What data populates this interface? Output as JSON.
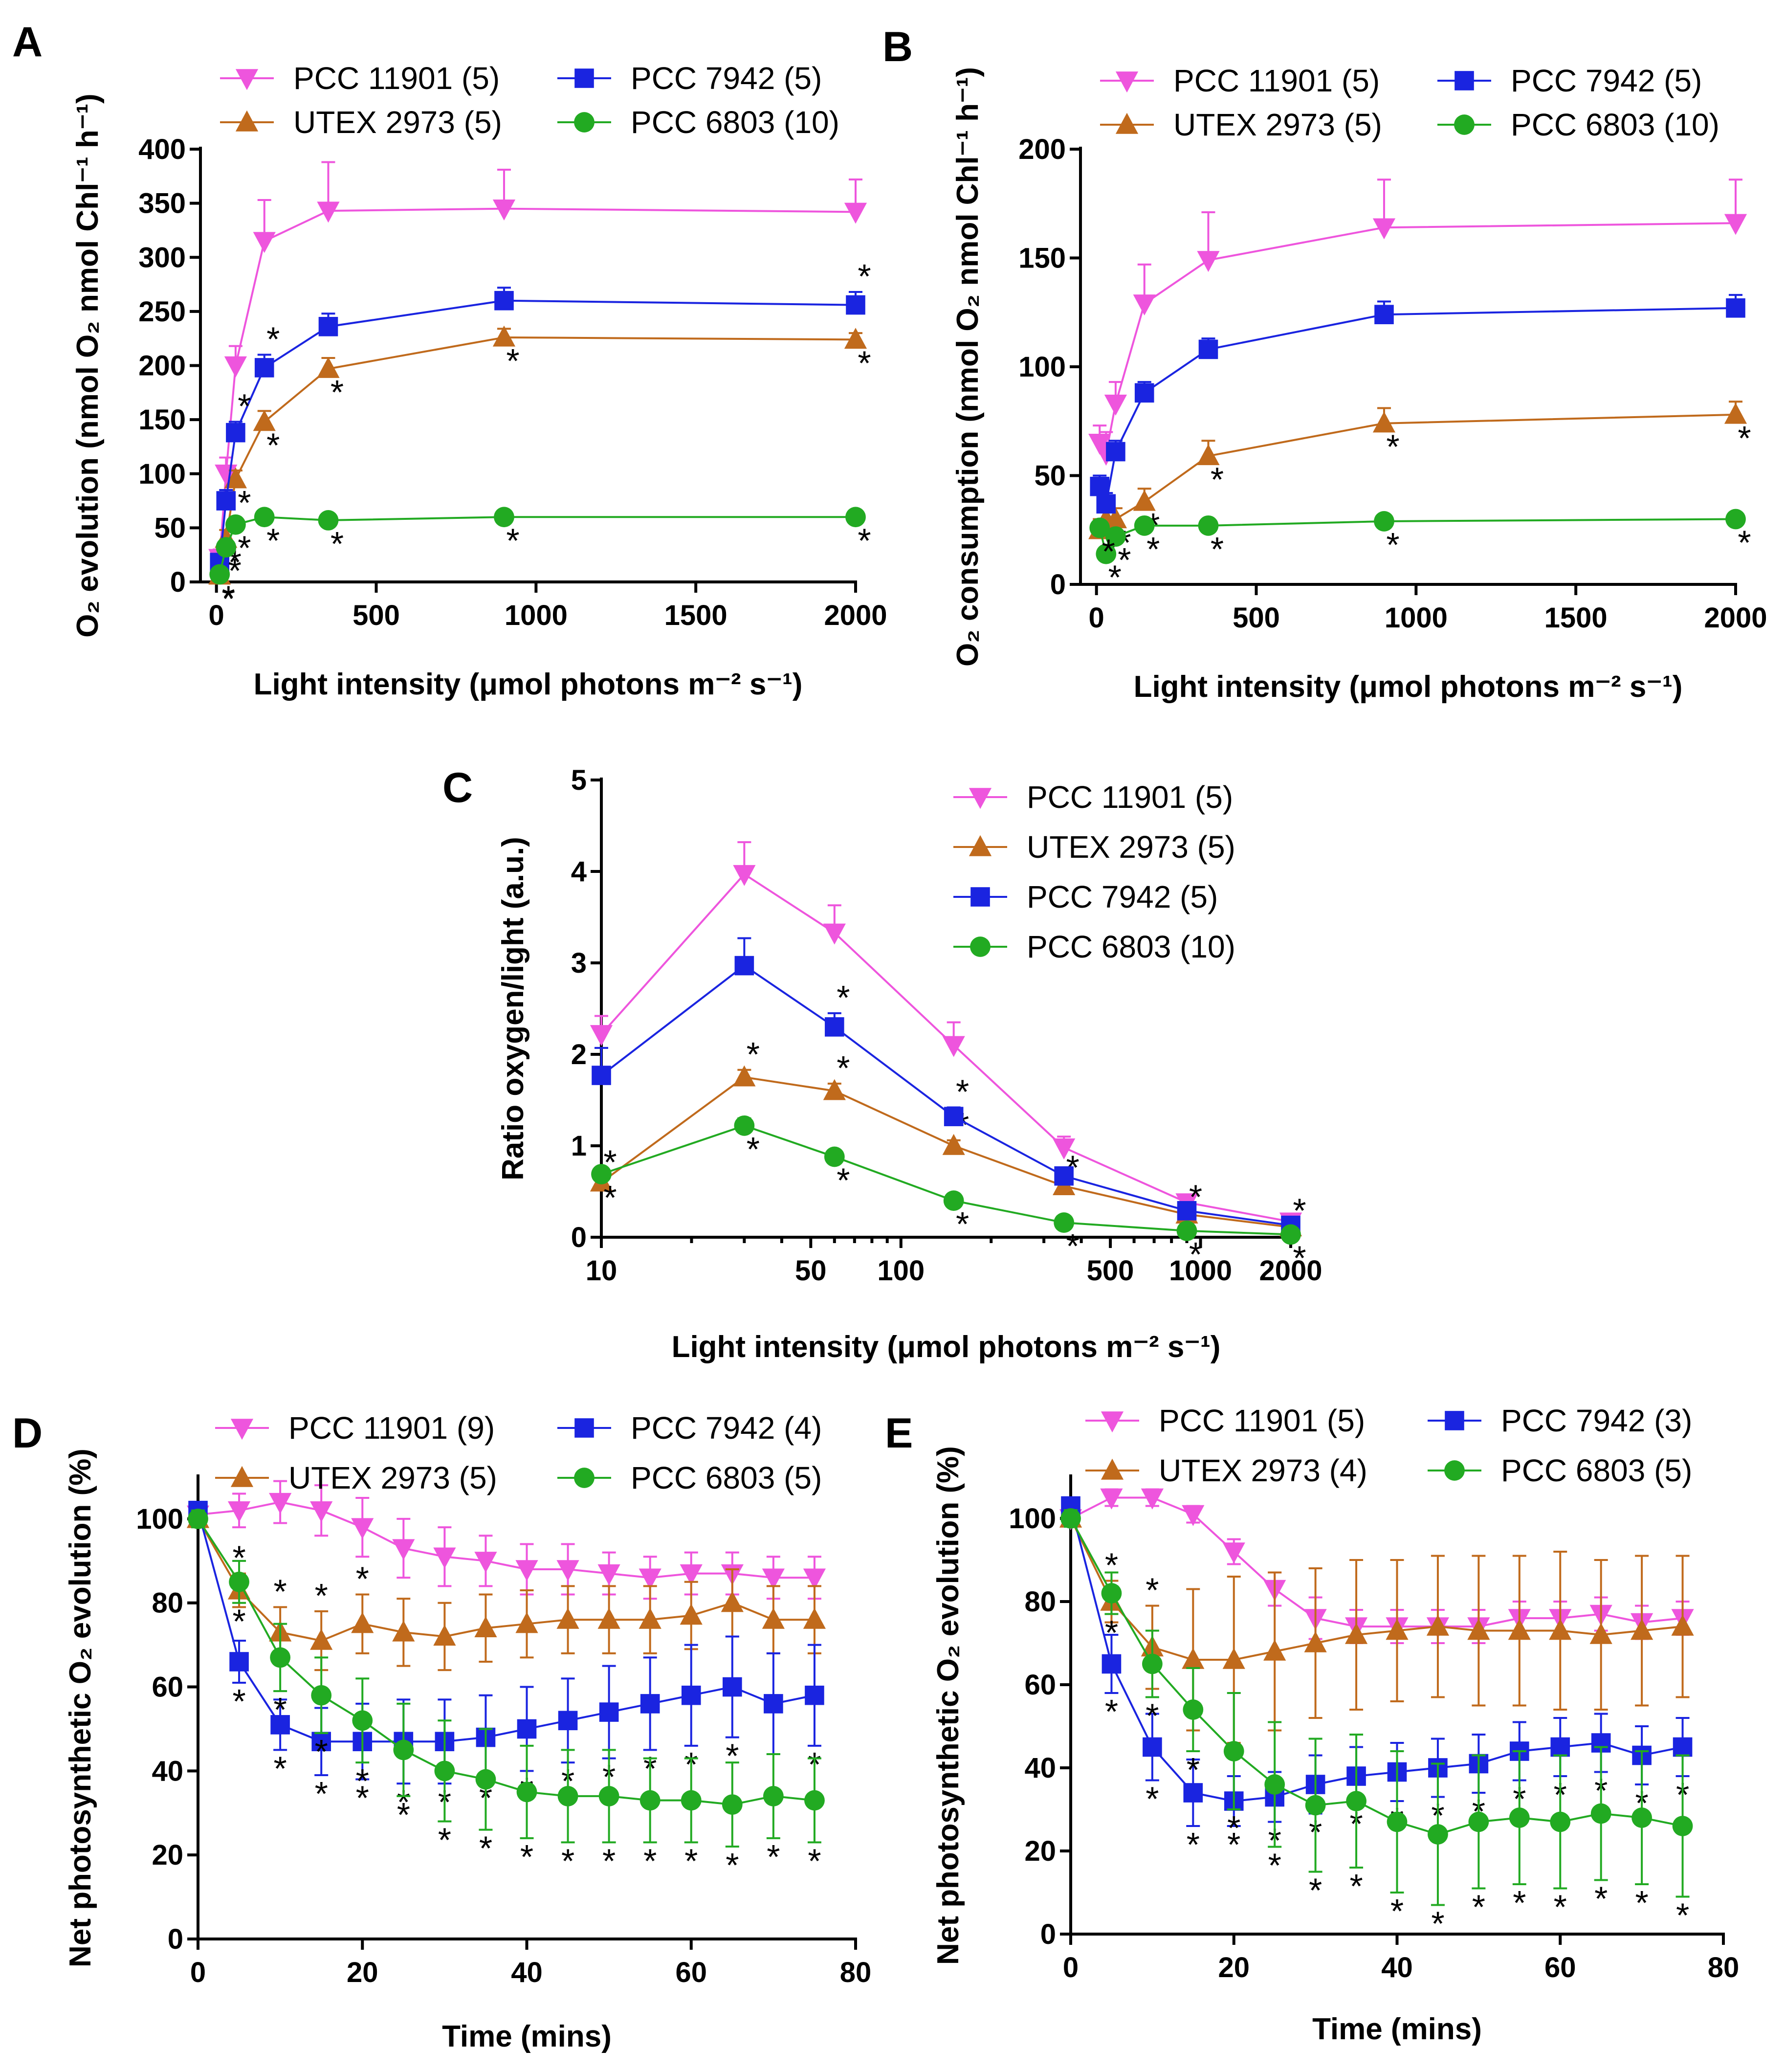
{
  "figure": {
    "colors": {
      "PCC 11901": "#ee55dd",
      "UTEX 2973": "#c06a1c",
      "PCC 7942": "#1a24e0",
      "PCC 6803": "#22aa22"
    },
    "markers": {
      "PCC 11901": "triangle-down",
      "UTEX 2973": "triangle-up",
      "PCC 7942": "square",
      "PCC 6803": "circle"
    }
  },
  "chart_data": [
    {
      "panel": "A",
      "type": "line",
      "xlabel": "Light intensity (μmol photons m⁻² s⁻¹)",
      "ylabel": "O₂ evolution (nmol O₂ nmol Chl⁻¹ h⁻¹)",
      "xlim": [
        -50,
        2000
      ],
      "ylim": [
        0,
        400
      ],
      "xticks": [
        0,
        500,
        1000,
        1500,
        2000
      ],
      "yticks": [
        0,
        50,
        100,
        150,
        200,
        250,
        300,
        350,
        400
      ],
      "x": [
        10,
        30,
        60,
        150,
        350,
        900,
        2000
      ],
      "legend": [
        "PCC 11901 (5)",
        "UTEX 2973 (5)",
        "PCC 7942 (5)",
        "PCC 6803 (10)"
      ],
      "series": [
        {
          "name": "PCC 11901",
          "values": [
            22,
            100,
            200,
            315,
            343,
            345,
            342
          ],
          "errors": [
            8,
            15,
            18,
            38,
            45,
            36,
            30
          ],
          "stars": []
        },
        {
          "name": "UTEX 2973",
          "values": [
            6,
            40,
            95,
            148,
            197,
            226,
            224
          ],
          "errors": [
            3,
            8,
            8,
            10,
            10,
            8,
            6
          ],
          "stars": [
            10,
            30,
            60,
            150,
            350,
            900,
            2000
          ]
        },
        {
          "name": "PCC 7942",
          "values": [
            18,
            75,
            138,
            198,
            236,
            260,
            256
          ],
          "errors": [
            5,
            10,
            10,
            12,
            12,
            12,
            12
          ],
          "stars": [
            60,
            150,
            2000
          ]
        },
        {
          "name": "PCC 6803",
          "values": [
            7,
            32,
            53,
            60,
            57,
            60,
            60
          ],
          "errors": [
            2,
            4,
            4,
            4,
            4,
            4,
            4
          ],
          "stars": [
            10,
            30,
            60,
            150,
            350,
            900,
            2000
          ]
        }
      ]
    },
    {
      "panel": "B",
      "type": "line",
      "xlabel": "Light intensity (μmol photons m⁻² s⁻¹)",
      "ylabel": "O₂ consumption (nmol O₂ nmol Chl⁻¹ h⁻¹)",
      "xlim": [
        -50,
        2000
      ],
      "ylim": [
        0,
        200
      ],
      "xticks": [
        0,
        500,
        1000,
        1500,
        2000
      ],
      "yticks": [
        0,
        50,
        100,
        150,
        200
      ],
      "x": [
        10,
        30,
        60,
        150,
        350,
        900,
        2000
      ],
      "legend": [
        "PCC 11901 (5)",
        "UTEX 2973 (5)",
        "PCC 7942 (5)",
        "PCC 6803 (10)"
      ],
      "series": [
        {
          "name": "PCC 11901",
          "values": [
            65,
            60,
            83,
            129,
            149,
            164,
            166
          ],
          "errors": [
            8,
            10,
            10,
            18,
            22,
            22,
            20
          ],
          "stars": []
        },
        {
          "name": "UTEX 2973",
          "values": [
            25,
            30,
            30,
            38,
            59,
            74,
            78
          ],
          "errors": [
            5,
            5,
            5,
            6,
            7,
            7,
            6
          ],
          "stars": [
            10,
            60,
            150,
            350,
            900,
            2000
          ]
        },
        {
          "name": "PCC 7942",
          "values": [
            45,
            37,
            61,
            88,
            108,
            124,
            127
          ],
          "errors": [
            5,
            5,
            5,
            5,
            5,
            6,
            6
          ],
          "stars": []
        },
        {
          "name": "PCC 6803",
          "values": [
            26,
            14,
            22,
            27,
            27,
            29,
            30
          ],
          "errors": [
            3,
            3,
            3,
            3,
            3,
            3,
            3
          ],
          "stars": [
            10,
            30,
            60,
            150,
            350,
            900,
            2000
          ]
        }
      ]
    },
    {
      "panel": "C",
      "type": "line",
      "xscale": "log",
      "xlabel": "Light intensity (μmol photons m⁻² s⁻¹)",
      "ylabel": "Ratio oxygen/light (a.u.)",
      "xlim": [
        10,
        2000
      ],
      "ylim": [
        0,
        5
      ],
      "xticks": [
        10,
        50,
        100,
        500,
        1000,
        2000
      ],
      "yticks": [
        0,
        1,
        2,
        3,
        4,
        5
      ],
      "x": [
        10,
        30,
        60,
        150,
        350,
        900,
        2000
      ],
      "legend": [
        "PCC 11901 (5)",
        "UTEX 2973 (5)",
        "PCC 7942 (5)",
        "PCC 6803 (10)"
      ],
      "series": [
        {
          "name": "PCC 11901",
          "values": [
            2.22,
            3.97,
            3.33,
            2.1,
            0.98,
            0.38,
            0.17
          ],
          "errors": [
            0.2,
            0.35,
            0.3,
            0.25,
            0.12,
            0.04,
            0.02
          ],
          "stars": []
        },
        {
          "name": "UTEX 2973",
          "values": [
            0.6,
            1.75,
            1.6,
            1.0,
            0.56,
            0.25,
            0.11
          ],
          "errors": [
            0.05,
            0.08,
            0.08,
            0.06,
            0.03,
            0.02,
            0.01
          ],
          "stars": [
            10,
            30,
            60,
            150,
            350,
            900,
            2000
          ]
        },
        {
          "name": "PCC 7942",
          "values": [
            1.77,
            2.97,
            2.3,
            1.32,
            0.67,
            0.29,
            0.13
          ],
          "errors": [
            0.3,
            0.3,
            0.15,
            0.1,
            0.05,
            0.03,
            0.02
          ],
          "stars": [
            60,
            150
          ]
        },
        {
          "name": "PCC 6803",
          "values": [
            0.69,
            1.22,
            0.88,
            0.4,
            0.16,
            0.07,
            0.03
          ],
          "errors": [
            0.05,
            0.08,
            0.06,
            0.04,
            0.02,
            0.01,
            0.01
          ],
          "stars": [
            10,
            30,
            60,
            150,
            350,
            900,
            2000
          ]
        }
      ]
    },
    {
      "panel": "D",
      "type": "line",
      "xlabel": "Time (mins)",
      "ylabel": "Net photosynthetic O₂ evolution (%)",
      "xlim": [
        0,
        80
      ],
      "ylim": [
        0,
        110
      ],
      "xticks": [
        0,
        20,
        40,
        60,
        80
      ],
      "yticks": [
        0,
        20,
        40,
        60,
        80,
        100
      ],
      "x": [
        0,
        5,
        10,
        15,
        20,
        25,
        30,
        35,
        40,
        45,
        50,
        55,
        60,
        65,
        70,
        75
      ],
      "legend": [
        "PCC 11901 (9)",
        "UTEX 2973 (5)",
        "PCC 7942 (4)",
        "PCC 6803 (5)"
      ],
      "series": [
        {
          "name": "PCC 11901",
          "values": [
            101,
            102,
            104,
            102,
            98,
            93,
            91,
            90,
            88,
            88,
            87,
            86,
            87,
            87,
            86,
            86
          ],
          "errors": [
            3,
            4,
            5,
            6,
            7,
            7,
            7,
            6,
            6,
            6,
            5,
            5,
            5,
            5,
            5,
            5
          ],
          "stars": []
        },
        {
          "name": "UTEX 2973",
          "values": [
            100,
            83,
            73,
            71,
            75,
            73,
            72,
            74,
            75,
            76,
            76,
            76,
            77,
            80,
            76,
            76
          ],
          "errors": [
            2,
            4,
            6,
            7,
            7,
            8,
            8,
            8,
            8,
            8,
            8,
            8,
            8,
            8,
            8,
            8
          ],
          "stars": [
            5,
            10,
            15,
            20
          ]
        },
        {
          "name": "PCC 7942",
          "values": [
            102,
            66,
            51,
            47,
            47,
            47,
            47,
            48,
            50,
            52,
            54,
            56,
            58,
            60,
            56,
            58
          ],
          "errors": [
            2,
            5,
            6,
            8,
            9,
            10,
            10,
            10,
            10,
            10,
            11,
            11,
            12,
            12,
            12,
            12
          ],
          "stars": [
            5,
            10,
            15,
            20,
            25,
            30,
            35,
            40,
            45,
            50,
            55,
            60,
            65,
            75
          ]
        },
        {
          "name": "PCC 6803",
          "values": [
            100,
            85,
            67,
            58,
            52,
            45,
            40,
            38,
            35,
            34,
            34,
            33,
            33,
            32,
            34,
            33
          ],
          "errors": [
            2,
            5,
            8,
            9,
            10,
            11,
            12,
            12,
            11,
            11,
            11,
            10,
            10,
            10,
            10,
            10
          ],
          "stars": [
            5,
            10,
            15,
            20,
            25,
            30,
            35,
            40,
            45,
            50,
            55,
            60,
            65,
            70,
            75
          ]
        }
      ]
    },
    {
      "panel": "E",
      "type": "line",
      "xlabel": "Time (mins)",
      "ylabel": "Net photosynthetic O₂ evolution (%)",
      "xlim": [
        0,
        80
      ],
      "ylim": [
        0,
        110
      ],
      "xticks": [
        0,
        20,
        40,
        60,
        80
      ],
      "yticks": [
        0,
        20,
        40,
        60,
        80,
        100
      ],
      "x": [
        0,
        5,
        10,
        15,
        20,
        25,
        30,
        35,
        40,
        45,
        50,
        55,
        60,
        65,
        70,
        75
      ],
      "legend": [
        "PCC 11901 (5)",
        "UTEX 2973 (4)",
        "PCC 7942 (3)",
        "PCC 6803 (5)"
      ],
      "series": [
        {
          "name": "PCC 11901",
          "values": [
            100,
            105,
            105,
            101,
            92,
            83,
            76,
            74,
            74,
            74,
            74,
            76,
            76,
            77,
            75,
            76
          ],
          "errors": [
            2,
            2,
            2,
            2,
            3,
            4,
            5,
            4,
            4,
            4,
            4,
            4,
            4,
            4,
            4,
            4
          ],
          "stars": []
        },
        {
          "name": "UTEX 2973",
          "values": [
            100,
            80,
            69,
            66,
            66,
            68,
            70,
            72,
            73,
            74,
            73,
            73,
            73,
            72,
            73,
            74
          ],
          "errors": [
            2,
            5,
            10,
            17,
            20,
            19,
            18,
            18,
            17,
            17,
            18,
            18,
            19,
            18,
            18,
            17
          ],
          "stars": [
            5,
            10
          ]
        },
        {
          "name": "PCC 7942",
          "values": [
            103,
            65,
            45,
            34,
            32,
            33,
            36,
            38,
            39,
            40,
            41,
            44,
            45,
            46,
            43,
            45
          ],
          "errors": [
            2,
            7,
            8,
            8,
            6,
            6,
            7,
            7,
            7,
            7,
            7,
            7,
            7,
            7,
            7,
            7
          ],
          "stars": [
            5,
            10,
            15,
            20,
            25,
            30,
            35,
            40,
            45,
            50,
            55,
            60,
            65,
            70,
            75
          ]
        },
        {
          "name": "PCC 6803",
          "values": [
            100,
            82,
            65,
            54,
            44,
            36,
            31,
            32,
            27,
            24,
            27,
            28,
            27,
            29,
            28,
            26
          ],
          "errors": [
            2,
            5,
            8,
            10,
            14,
            15,
            16,
            16,
            17,
            17,
            16,
            16,
            16,
            16,
            16,
            17
          ],
          "stars": [
            5,
            10,
            15,
            20,
            25,
            30,
            35,
            40,
            45,
            50,
            55,
            60,
            65,
            70,
            75
          ]
        }
      ]
    }
  ]
}
